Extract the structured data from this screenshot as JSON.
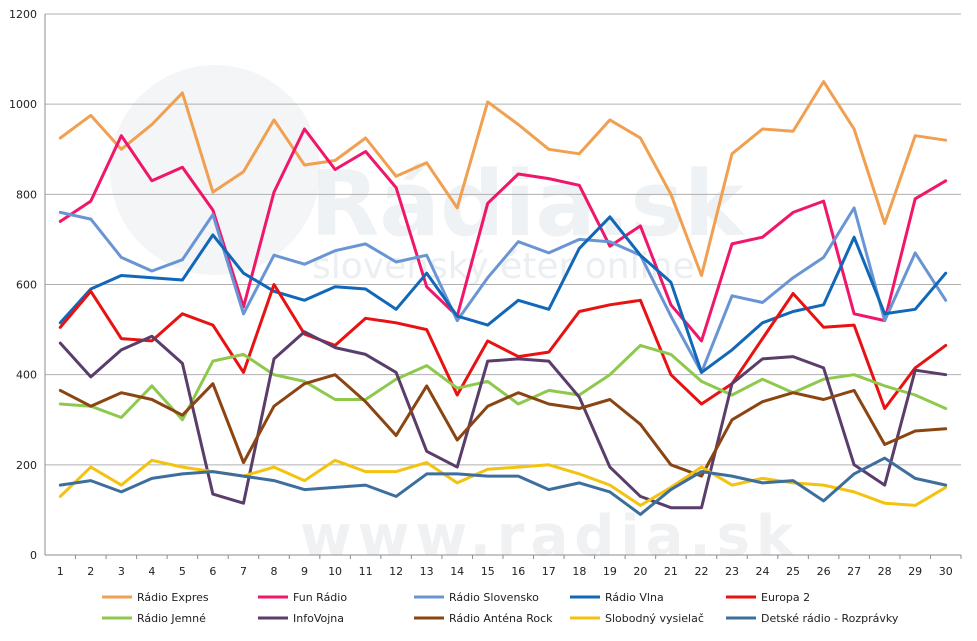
{
  "watermark": {
    "text_main": "Rádia.sk",
    "text_sub": "slovenský éter online",
    "text_bottom": "www.radia.sk"
  },
  "chart_data": {
    "type": "line",
    "title": "",
    "xlabel": "",
    "ylabel": "",
    "ylim": [
      0,
      1200
    ],
    "yticks": [
      0,
      200,
      400,
      600,
      800,
      1000,
      1200
    ],
    "grid": true,
    "legend_position": "bottom",
    "x": [
      1,
      2,
      3,
      4,
      5,
      6,
      7,
      8,
      9,
      10,
      11,
      12,
      13,
      14,
      15,
      16,
      17,
      18,
      19,
      20,
      21,
      22,
      23,
      24,
      25,
      26,
      27,
      28,
      29,
      30
    ],
    "series": [
      {
        "name": "Rádio Expres",
        "color": "#f0a050",
        "values": [
          925,
          975,
          900,
          955,
          1025,
          805,
          850,
          965,
          865,
          875,
          925,
          840,
          870,
          770,
          1005,
          955,
          900,
          890,
          965,
          925,
          800,
          620,
          890,
          945,
          940,
          1050,
          945,
          735,
          930,
          920
        ]
      },
      {
        "name": "Fun Rádio",
        "color": "#f0166a",
        "values": [
          740,
          785,
          930,
          830,
          860,
          765,
          550,
          805,
          945,
          855,
          895,
          815,
          595,
          530,
          780,
          845,
          835,
          820,
          685,
          730,
          555,
          475,
          690,
          705,
          760,
          785,
          535,
          520,
          790,
          830
        ]
      },
      {
        "name": "Rádio Slovensko",
        "color": "#6a95d4",
        "values": [
          760,
          745,
          660,
          630,
          655,
          755,
          535,
          665,
          645,
          675,
          690,
          650,
          665,
          520,
          615,
          695,
          670,
          700,
          695,
          665,
          530,
          405,
          575,
          560,
          615,
          660,
          770,
          520,
          670,
          565
        ]
      },
      {
        "name": "Rádio Vlna",
        "color": "#1167b8",
        "values": [
          515,
          590,
          620,
          615,
          610,
          710,
          625,
          585,
          565,
          595,
          590,
          545,
          625,
          530,
          510,
          565,
          545,
          680,
          750,
          665,
          605,
          405,
          455,
          515,
          540,
          555,
          705,
          535,
          545,
          625
        ]
      },
      {
        "name": "Europa 2",
        "color": "#e81212",
        "values": [
          505,
          585,
          480,
          475,
          535,
          510,
          405,
          600,
          490,
          465,
          525,
          515,
          500,
          355,
          475,
          440,
          450,
          540,
          555,
          565,
          400,
          335,
          380,
          480,
          580,
          505,
          510,
          325,
          415,
          465
        ]
      },
      {
        "name": "Rádio Jemné",
        "color": "#8ec94e",
        "values": [
          335,
          330,
          305,
          375,
          300,
          430,
          445,
          400,
          385,
          345,
          345,
          390,
          420,
          370,
          385,
          335,
          365,
          355,
          400,
          465,
          445,
          385,
          355,
          390,
          360,
          390,
          400,
          375,
          355,
          325
        ]
      },
      {
        "name": "InfoVojna",
        "color": "#5a3d6a",
        "values": [
          470,
          395,
          455,
          485,
          425,
          135,
          115,
          435,
          495,
          460,
          445,
          405,
          230,
          195,
          430,
          435,
          430,
          350,
          195,
          130,
          105,
          105,
          380,
          435,
          440,
          415,
          200,
          155,
          410,
          400
        ]
      },
      {
        "name": "Rádio Anténa Rock",
        "color": "#8a4512",
        "values": [
          365,
          330,
          360,
          345,
          310,
          380,
          205,
          330,
          380,
          400,
          340,
          265,
          375,
          255,
          330,
          360,
          335,
          325,
          345,
          290,
          200,
          175,
          300,
          340,
          360,
          345,
          365,
          245,
          275,
          280
        ]
      },
      {
        "name": "Slobodný vysielač",
        "color": "#f3c30f",
        "values": [
          130,
          195,
          155,
          210,
          195,
          185,
          175,
          195,
          165,
          210,
          185,
          185,
          205,
          160,
          190,
          195,
          200,
          180,
          155,
          110,
          150,
          195,
          155,
          170,
          160,
          155,
          140,
          115,
          110,
          150
        ]
      },
      {
        "name": "Detské rádio - Rozprávky",
        "color": "#3d6e9e",
        "values": [
          155,
          165,
          140,
          170,
          180,
          185,
          175,
          165,
          145,
          150,
          155,
          130,
          180,
          180,
          175,
          175,
          145,
          160,
          140,
          90,
          145,
          185,
          175,
          160,
          165,
          120,
          180,
          215,
          170,
          155
        ]
      }
    ]
  }
}
